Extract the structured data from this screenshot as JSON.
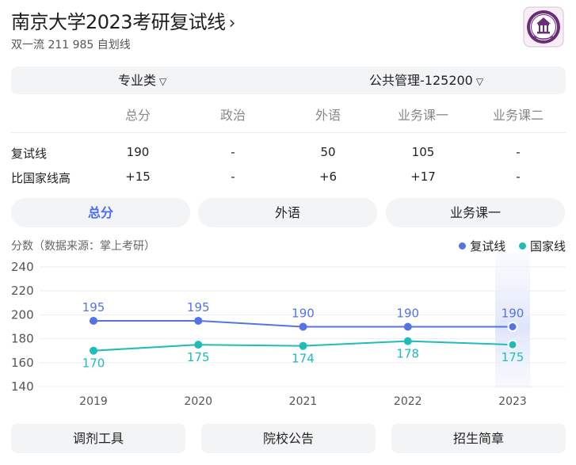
{
  "header": {
    "title": "南京大学2023考研复试线",
    "chevron": "›",
    "subtitle": "双一流 211 985 自划线",
    "logo_icon": "university-seal"
  },
  "selector": {
    "category": "专业类",
    "major": "公共管理-125200",
    "caret": "⌄"
  },
  "score_table": {
    "columns": [
      "总分",
      "政治",
      "外语",
      "业务课一",
      "业务课二"
    ],
    "rows": [
      {
        "label": "复试线",
        "values": [
          "190",
          "-",
          "50",
          "105",
          "-"
        ]
      },
      {
        "label": "比国家线高",
        "values": [
          "+15",
          "-",
          "+6",
          "+17",
          "-"
        ]
      }
    ]
  },
  "tabs": [
    {
      "label": "总分",
      "active": true
    },
    {
      "label": "外语",
      "active": false
    },
    {
      "label": "业务课一",
      "active": false
    }
  ],
  "chart_info": {
    "source_label": "分数（数据来源：掌上考研）"
  },
  "colors": {
    "accent": "#4a6cf7",
    "retest_line": "#5573e6",
    "national_line": "#1fbcb8",
    "button_bg": "#f3f4f6"
  },
  "chart_data": {
    "type": "line",
    "categories": [
      "2019",
      "2020",
      "2021",
      "2022",
      "2023"
    ],
    "series": [
      {
        "name": "复试线",
        "values": [
          195,
          195,
          190,
          190,
          190
        ]
      },
      {
        "name": "国家线",
        "values": [
          170,
          175,
          174,
          178,
          175
        ]
      }
    ],
    "yticks": [
      240,
      220,
      200,
      180,
      160,
      140
    ],
    "ylim": [
      140,
      240
    ],
    "grid": true,
    "legend": "top-right",
    "highlight_category": "2023"
  },
  "footer_buttons": [
    "调剂工具",
    "院校公告",
    "招生简章"
  ]
}
